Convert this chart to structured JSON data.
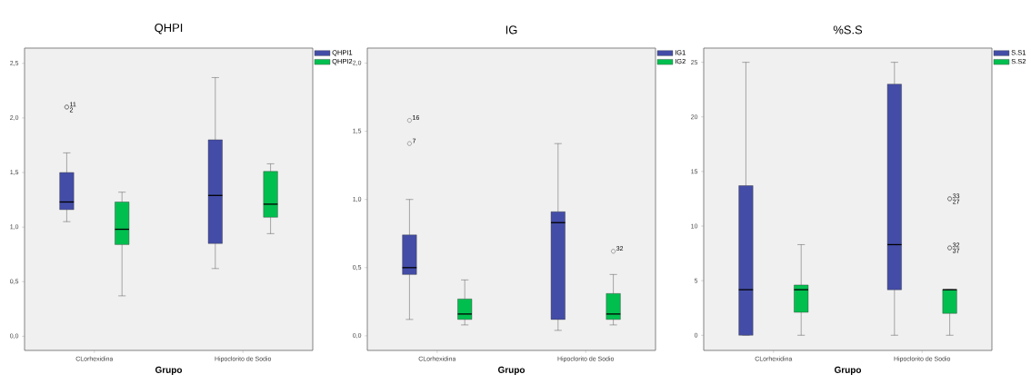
{
  "chart_data": [
    {
      "type": "box",
      "title": "QHPI",
      "xlabel": "Grupo",
      "categories": [
        "CLorhexidina",
        "Hipoclorito de Sodio"
      ],
      "legend": "top right",
      "ylim": [
        -0.13,
        2.64
      ],
      "yticks": [
        {
          "value": 0,
          "label": "0,0"
        },
        {
          "value": 0.5,
          "label": "0,5"
        },
        {
          "value": 1,
          "label": "1,0"
        },
        {
          "value": 1.5,
          "label": "1,5"
        },
        {
          "value": 2,
          "label": "2,0"
        },
        {
          "value": 2.5,
          "label": "2,5"
        }
      ],
      "series": [
        {
          "name": "QHPI1",
          "color": "#434da8",
          "boxes": [
            {
              "low": 1.05,
              "q1": 1.16,
              "median": 1.23,
              "q3": 1.5,
              "high": 1.68,
              "outliers": [
                2.1,
                2.1
              ]
            },
            {
              "low": 0.62,
              "q1": 0.85,
              "median": 1.29,
              "q3": 1.8,
              "high": 2.37
            }
          ]
        },
        {
          "name": "QHPI2",
          "color": "#00bf4f",
          "boxes": [
            {
              "low": 0.37,
              "q1": 0.84,
              "median": 0.98,
              "q3": 1.23,
              "high": 1.32
            },
            {
              "low": 0.94,
              "q1": 1.09,
              "median": 1.21,
              "q3": 1.51,
              "high": 1.58
            }
          ]
        }
      ],
      "annotations": [
        "11",
        "2"
      ]
    },
    {
      "type": "box",
      "title": "IG",
      "xlabel": "Grupo",
      "categories": [
        "CLorhexidina",
        "Hipoclorito de Sodio"
      ],
      "legend": "top right",
      "ylim": [
        -0.107,
        2.11
      ],
      "yticks": [
        {
          "value": 0,
          "label": "0,0"
        },
        {
          "value": 0.5,
          "label": "0,5"
        },
        {
          "value": 1,
          "label": "1,0"
        },
        {
          "value": 1.5,
          "label": "1,5"
        },
        {
          "value": 2,
          "label": "2,0"
        }
      ],
      "series": [
        {
          "name": "IG1",
          "color": "#434da8",
          "boxes": [
            {
              "low": 0.12,
              "q1": 0.45,
              "median": 0.5,
              "q3": 0.74,
              "high": 1.0,
              "outliers": [
                1.58,
                1.41
              ]
            },
            {
              "low": 0.04,
              "q1": 0.12,
              "median": 0.83,
              "q3": 0.91,
              "high": 1.41
            }
          ]
        },
        {
          "name": "IG2",
          "color": "#00bf4f",
          "boxes": [
            {
              "low": 0.08,
              "q1": 0.12,
              "median": 0.16,
              "q3": 0.27,
              "high": 0.41
            },
            {
              "low": 0.08,
              "q1": 0.12,
              "median": 0.16,
              "q3": 0.31,
              "high": 0.45,
              "outliers": [
                0.62
              ]
            }
          ]
        }
      ],
      "annotations": [
        "16",
        "7",
        "32"
      ]
    },
    {
      "type": "box",
      "title": "%S.S",
      "xlabel": "Grupo",
      "categories": [
        "CLorhexidina",
        "Hipoclorito de Sodio"
      ],
      "legend": "top right",
      "ylim": [
        -1.39,
        26.3
      ],
      "yticks": [
        0,
        5,
        10,
        15,
        20,
        25
      ],
      "series": [
        {
          "name": "S.S1",
          "color": "#434da8",
          "boxes": [
            {
              "low": 0,
              "q1": 0,
              "median": 4.17,
              "q3": 13.7,
              "high": 25
            },
            {
              "low": 0,
              "q1": 4.17,
              "median": 8.3,
              "q3": 23,
              "high": 25
            }
          ]
        },
        {
          "name": "S.S2",
          "color": "#00bf4f",
          "boxes": [
            {
              "low": 0,
              "q1": 2.1,
              "median": 4.17,
              "q3": 4.6,
              "high": 8.3
            },
            {
              "low": 0,
              "q1": 2,
              "median": 4.17,
              "q3": 4.17,
              "high": 4.17,
              "outliers": [
                12.5,
                12.5,
                8,
                8
              ]
            }
          ]
        }
      ],
      "annotations": [
        "33",
        "27",
        "32",
        "37"
      ]
    }
  ]
}
